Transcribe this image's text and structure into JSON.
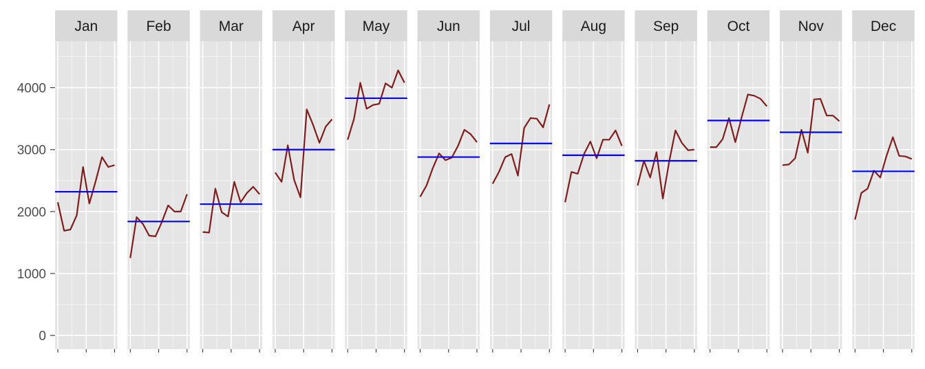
{
  "chart_data": {
    "type": "line",
    "layout": "faceted-by-month",
    "title": "",
    "xlabel": "",
    "ylabel": "",
    "ylim": [
      -220,
      4750
    ],
    "y_ticks": [
      0,
      1000,
      2000,
      3000,
      4000
    ],
    "grid": true,
    "legend": "none",
    "colors": {
      "series_line": "#7f1d1d",
      "mean_line": "#0000ff",
      "panel_bg": "#e5e5e5",
      "strip_bg": "#d9d9d9",
      "grid": "#ffffff"
    },
    "panels": [
      {
        "month": "Jan",
        "mean": 2320,
        "values": [
          2150,
          1690,
          1710,
          1940,
          2720,
          2130,
          2490,
          2880,
          2720,
          2750
        ]
      },
      {
        "month": "Feb",
        "mean": 1840,
        "values": [
          1250,
          1910,
          1800,
          1610,
          1600,
          1830,
          2100,
          2000,
          2000,
          2280
        ]
      },
      {
        "month": "Mar",
        "mean": 2120,
        "values": [
          1670,
          1660,
          2370,
          1990,
          1920,
          2480,
          2150,
          2300,
          2400,
          2280
        ]
      },
      {
        "month": "Apr",
        "mean": 3000,
        "values": [
          2630,
          2480,
          3070,
          2510,
          2230,
          3650,
          3400,
          3110,
          3370,
          3490
        ]
      },
      {
        "month": "May",
        "mean": 3830,
        "values": [
          3160,
          3500,
          4080,
          3660,
          3720,
          3740,
          4070,
          4000,
          4280,
          4080
        ]
      },
      {
        "month": "Jun",
        "mean": 2880,
        "values": [
          2240,
          2420,
          2700,
          2940,
          2830,
          2870,
          3060,
          3320,
          3250,
          3120
        ]
      },
      {
        "month": "Jul",
        "mean": 3100,
        "values": [
          2450,
          2640,
          2880,
          2930,
          2580,
          3350,
          3510,
          3500,
          3360,
          3730
        ]
      },
      {
        "month": "Aug",
        "mean": 2910,
        "values": [
          2150,
          2640,
          2610,
          2930,
          3130,
          2860,
          3160,
          3160,
          3310,
          3060
        ]
      },
      {
        "month": "Sep",
        "mean": 2820,
        "values": [
          2420,
          2820,
          2550,
          2960,
          2210,
          2800,
          3310,
          3110,
          2990,
          3000
        ]
      },
      {
        "month": "Oct",
        "mean": 3470,
        "values": [
          3040,
          3040,
          3170,
          3510,
          3120,
          3520,
          3890,
          3870,
          3820,
          3700
        ]
      },
      {
        "month": "Nov",
        "mean": 3280,
        "values": [
          2750,
          2760,
          2860,
          3320,
          2950,
          3810,
          3820,
          3550,
          3550,
          3460
        ]
      },
      {
        "month": "Dec",
        "mean": 2650,
        "values": [
          1870,
          2300,
          2370,
          2660,
          2550,
          2900,
          3200,
          2900,
          2890,
          2850
        ]
      }
    ]
  }
}
